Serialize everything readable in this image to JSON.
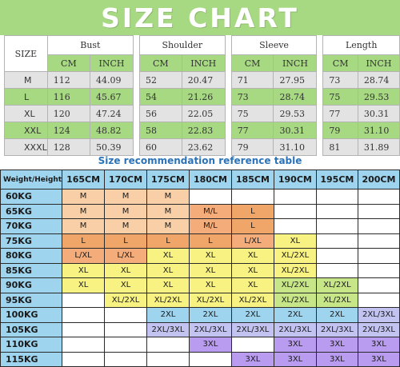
{
  "banner": {
    "title": "SIZE  CHART"
  },
  "size_chart": {
    "size_header": "SIZE",
    "groups": [
      "Bust",
      "Shoulder",
      "Sleeve",
      "Length"
    ],
    "units": [
      "CM",
      "INCH",
      "CM",
      "INCH",
      "CM",
      "INCH",
      "CM",
      "INCH"
    ],
    "rows": [
      {
        "size": "M",
        "values": [
          "112",
          "44.09",
          "52",
          "20.47",
          "71",
          "27.95",
          "73",
          "28.74"
        ]
      },
      {
        "size": "L",
        "values": [
          "116",
          "45.67",
          "54",
          "21.26",
          "73",
          "28.74",
          "75",
          "29.53"
        ]
      },
      {
        "size": "XL",
        "values": [
          "120",
          "47.24",
          "56",
          "22.05",
          "75",
          "29.53",
          "77",
          "30.31"
        ]
      },
      {
        "size": "XXL",
        "values": [
          "124",
          "48.82",
          "58",
          "22.83",
          "77",
          "30.31",
          "79",
          "31.10"
        ]
      },
      {
        "size": "XXXL",
        "values": [
          "128",
          "50.39",
          "60",
          "23.62",
          "79",
          "31.10",
          "81",
          "31.89"
        ]
      }
    ]
  },
  "recommendation": {
    "title": "Size recommendation reference table",
    "corner": "Weight/Height",
    "heights": [
      "165CM",
      "170CM",
      "175CM",
      "180CM",
      "185CM",
      "190CM",
      "195CM",
      "200CM"
    ],
    "rows": [
      {
        "weight": "60KG",
        "cells": [
          "M",
          "M",
          "M",
          "",
          "",
          "",
          "",
          ""
        ]
      },
      {
        "weight": "65KG",
        "cells": [
          "M",
          "M",
          "M",
          "M/L",
          "L",
          "",
          "",
          ""
        ]
      },
      {
        "weight": "70KG",
        "cells": [
          "M",
          "M",
          "M",
          "M/L",
          "L",
          "",
          "",
          ""
        ]
      },
      {
        "weight": "75KG",
        "cells": [
          "L",
          "L",
          "L",
          "L",
          "L/XL",
          "XL",
          "",
          ""
        ]
      },
      {
        "weight": "80KG",
        "cells": [
          "L/XL",
          "L/XL",
          "XL",
          "XL",
          "XL",
          "XL/2XL",
          "",
          ""
        ]
      },
      {
        "weight": "85KG",
        "cells": [
          "XL",
          "XL",
          "XL",
          "XL",
          "XL",
          "XL/2XL",
          "",
          ""
        ]
      },
      {
        "weight": "90KG",
        "cells": [
          "XL",
          "XL",
          "XL",
          "XL",
          "XL",
          "XL/2XL",
          "XL/2XL",
          ""
        ]
      },
      {
        "weight": "95KG",
        "cells": [
          "",
          "XL/2XL",
          "XL/2XL",
          "XL/2XL",
          "XL/2XL",
          "XL/2XL",
          "XL/2XL",
          ""
        ]
      },
      {
        "weight": "100KG",
        "cells": [
          "",
          "",
          "2XL",
          "2XL",
          "2XL",
          "2XL",
          "2XL",
          "2XL/3XL"
        ]
      },
      {
        "weight": "105KG",
        "cells": [
          "",
          "",
          "2XL/3XL",
          "2XL/3XL",
          "2XL/3XL",
          "2XL/3XL",
          "2XL/3XL",
          "2XL/3XL"
        ]
      },
      {
        "weight": "110KG",
        "cells": [
          "",
          "",
          "",
          "3XL",
          "",
          "3XL",
          "3XL",
          "3XL"
        ]
      },
      {
        "weight": "115KG",
        "cells": [
          "",
          "",
          "",
          "",
          "3XL",
          "3XL",
          "3XL",
          "3XL"
        ]
      }
    ]
  },
  "colors": {
    "banner_green": "#a7d982",
    "row_grey": "#e3e3e3",
    "header_blue": "#9ed4ee",
    "title_blue": "#2b73b9",
    "size_M": "#f8cfa7",
    "size_L": "#f0a668",
    "size_XL": "#f8f282",
    "size_2XL": "#9ed4ee",
    "size_2XL_3XL": "#c2c3f0",
    "size_3XL": "#b99cf0"
  }
}
